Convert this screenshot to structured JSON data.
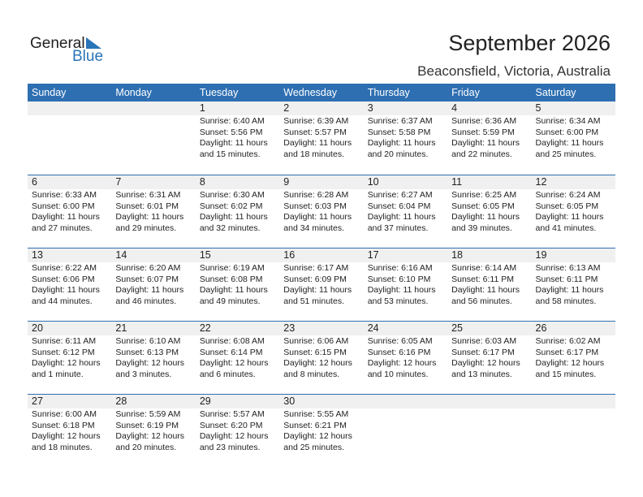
{
  "logo": {
    "general": "General",
    "blue": "Blue"
  },
  "header": {
    "title": "September 2026",
    "location": "Beaconsfield, Victoria, Australia"
  },
  "colors": {
    "accent": "#2e6fb1"
  },
  "weekdays": [
    "Sunday",
    "Monday",
    "Tuesday",
    "Wednesday",
    "Thursday",
    "Friday",
    "Saturday"
  ],
  "weeks": [
    [
      null,
      null,
      {
        "day": "1",
        "sunrise": "Sunrise: 6:40 AM",
        "sunset": "Sunset: 5:56 PM",
        "daylight": "Daylight: 11 hours",
        "minutes": "and 15 minutes."
      },
      {
        "day": "2",
        "sunrise": "Sunrise: 6:39 AM",
        "sunset": "Sunset: 5:57 PM",
        "daylight": "Daylight: 11 hours",
        "minutes": "and 18 minutes."
      },
      {
        "day": "3",
        "sunrise": "Sunrise: 6:37 AM",
        "sunset": "Sunset: 5:58 PM",
        "daylight": "Daylight: 11 hours",
        "minutes": "and 20 minutes."
      },
      {
        "day": "4",
        "sunrise": "Sunrise: 6:36 AM",
        "sunset": "Sunset: 5:59 PM",
        "daylight": "Daylight: 11 hours",
        "minutes": "and 22 minutes."
      },
      {
        "day": "5",
        "sunrise": "Sunrise: 6:34 AM",
        "sunset": "Sunset: 6:00 PM",
        "daylight": "Daylight: 11 hours",
        "minutes": "and 25 minutes."
      }
    ],
    [
      {
        "day": "6",
        "sunrise": "Sunrise: 6:33 AM",
        "sunset": "Sunset: 6:00 PM",
        "daylight": "Daylight: 11 hours",
        "minutes": "and 27 minutes."
      },
      {
        "day": "7",
        "sunrise": "Sunrise: 6:31 AM",
        "sunset": "Sunset: 6:01 PM",
        "daylight": "Daylight: 11 hours",
        "minutes": "and 29 minutes."
      },
      {
        "day": "8",
        "sunrise": "Sunrise: 6:30 AM",
        "sunset": "Sunset: 6:02 PM",
        "daylight": "Daylight: 11 hours",
        "minutes": "and 32 minutes."
      },
      {
        "day": "9",
        "sunrise": "Sunrise: 6:28 AM",
        "sunset": "Sunset: 6:03 PM",
        "daylight": "Daylight: 11 hours",
        "minutes": "and 34 minutes."
      },
      {
        "day": "10",
        "sunrise": "Sunrise: 6:27 AM",
        "sunset": "Sunset: 6:04 PM",
        "daylight": "Daylight: 11 hours",
        "minutes": "and 37 minutes."
      },
      {
        "day": "11",
        "sunrise": "Sunrise: 6:25 AM",
        "sunset": "Sunset: 6:05 PM",
        "daylight": "Daylight: 11 hours",
        "minutes": "and 39 minutes."
      },
      {
        "day": "12",
        "sunrise": "Sunrise: 6:24 AM",
        "sunset": "Sunset: 6:05 PM",
        "daylight": "Daylight: 11 hours",
        "minutes": "and 41 minutes."
      }
    ],
    [
      {
        "day": "13",
        "sunrise": "Sunrise: 6:22 AM",
        "sunset": "Sunset: 6:06 PM",
        "daylight": "Daylight: 11 hours",
        "minutes": "and 44 minutes."
      },
      {
        "day": "14",
        "sunrise": "Sunrise: 6:20 AM",
        "sunset": "Sunset: 6:07 PM",
        "daylight": "Daylight: 11 hours",
        "minutes": "and 46 minutes."
      },
      {
        "day": "15",
        "sunrise": "Sunrise: 6:19 AM",
        "sunset": "Sunset: 6:08 PM",
        "daylight": "Daylight: 11 hours",
        "minutes": "and 49 minutes."
      },
      {
        "day": "16",
        "sunrise": "Sunrise: 6:17 AM",
        "sunset": "Sunset: 6:09 PM",
        "daylight": "Daylight: 11 hours",
        "minutes": "and 51 minutes."
      },
      {
        "day": "17",
        "sunrise": "Sunrise: 6:16 AM",
        "sunset": "Sunset: 6:10 PM",
        "daylight": "Daylight: 11 hours",
        "minutes": "and 53 minutes."
      },
      {
        "day": "18",
        "sunrise": "Sunrise: 6:14 AM",
        "sunset": "Sunset: 6:11 PM",
        "daylight": "Daylight: 11 hours",
        "minutes": "and 56 minutes."
      },
      {
        "day": "19",
        "sunrise": "Sunrise: 6:13 AM",
        "sunset": "Sunset: 6:11 PM",
        "daylight": "Daylight: 11 hours",
        "minutes": "and 58 minutes."
      }
    ],
    [
      {
        "day": "20",
        "sunrise": "Sunrise: 6:11 AM",
        "sunset": "Sunset: 6:12 PM",
        "daylight": "Daylight: 12 hours",
        "minutes": "and 1 minute."
      },
      {
        "day": "21",
        "sunrise": "Sunrise: 6:10 AM",
        "sunset": "Sunset: 6:13 PM",
        "daylight": "Daylight: 12 hours",
        "minutes": "and 3 minutes."
      },
      {
        "day": "22",
        "sunrise": "Sunrise: 6:08 AM",
        "sunset": "Sunset: 6:14 PM",
        "daylight": "Daylight: 12 hours",
        "minutes": "and 6 minutes."
      },
      {
        "day": "23",
        "sunrise": "Sunrise: 6:06 AM",
        "sunset": "Sunset: 6:15 PM",
        "daylight": "Daylight: 12 hours",
        "minutes": "and 8 minutes."
      },
      {
        "day": "24",
        "sunrise": "Sunrise: 6:05 AM",
        "sunset": "Sunset: 6:16 PM",
        "daylight": "Daylight: 12 hours",
        "minutes": "and 10 minutes."
      },
      {
        "day": "25",
        "sunrise": "Sunrise: 6:03 AM",
        "sunset": "Sunset: 6:17 PM",
        "daylight": "Daylight: 12 hours",
        "minutes": "and 13 minutes."
      },
      {
        "day": "26",
        "sunrise": "Sunrise: 6:02 AM",
        "sunset": "Sunset: 6:17 PM",
        "daylight": "Daylight: 12 hours",
        "minutes": "and 15 minutes."
      }
    ],
    [
      {
        "day": "27",
        "sunrise": "Sunrise: 6:00 AM",
        "sunset": "Sunset: 6:18 PM",
        "daylight": "Daylight: 12 hours",
        "minutes": "and 18 minutes."
      },
      {
        "day": "28",
        "sunrise": "Sunrise: 5:59 AM",
        "sunset": "Sunset: 6:19 PM",
        "daylight": "Daylight: 12 hours",
        "minutes": "and 20 minutes."
      },
      {
        "day": "29",
        "sunrise": "Sunrise: 5:57 AM",
        "sunset": "Sunset: 6:20 PM",
        "daylight": "Daylight: 12 hours",
        "minutes": "and 23 minutes."
      },
      {
        "day": "30",
        "sunrise": "Sunrise: 5:55 AM",
        "sunset": "Sunset: 6:21 PM",
        "daylight": "Daylight: 12 hours",
        "minutes": "and 25 minutes."
      },
      null,
      null,
      null
    ]
  ]
}
